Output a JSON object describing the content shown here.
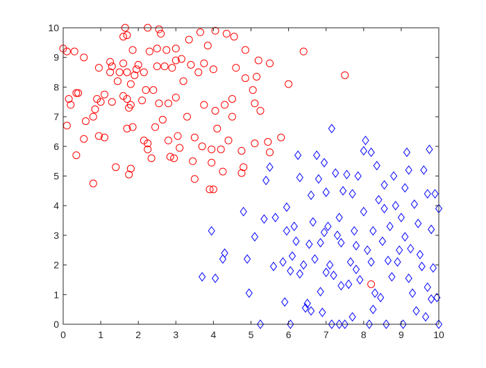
{
  "chart_data": {
    "type": "scatter",
    "title": "",
    "xlabel": "",
    "ylabel": "",
    "xlim": [
      0,
      10
    ],
    "ylim": [
      0,
      10
    ],
    "grid": false,
    "legend": "none",
    "x_ticks": [
      "0",
      "1",
      "2",
      "3",
      "4",
      "5",
      "6",
      "7",
      "8",
      "9",
      "10"
    ],
    "y_ticks": [
      "0",
      "1",
      "2",
      "3",
      "4",
      "5",
      "6",
      "7",
      "8",
      "9",
      "10"
    ],
    "series": [
      {
        "marker": "circle",
        "color": "#ff0000",
        "points": [
          [
            0,
            9.3
          ],
          [
            0.1,
            9.2
          ],
          [
            0.3,
            9.2
          ],
          [
            0.55,
            9.0
          ],
          [
            0.1,
            6.7
          ],
          [
            0.15,
            7.6
          ],
          [
            0.2,
            7.4
          ],
          [
            0.35,
            7.8
          ],
          [
            0.4,
            7.8
          ],
          [
            0.35,
            5.7
          ],
          [
            0.55,
            6.25
          ],
          [
            0.6,
            6.85
          ],
          [
            0.8,
            4.75
          ],
          [
            0.8,
            7.0
          ],
          [
            0.85,
            7.25
          ],
          [
            0.95,
            8.65
          ],
          [
            0.95,
            6.35
          ],
          [
            0.9,
            7.6
          ],
          [
            1.0,
            7.5
          ],
          [
            1.1,
            6.3
          ],
          [
            1.1,
            7.75
          ],
          [
            1.25,
            8.85
          ],
          [
            1.3,
            8.7
          ],
          [
            1.25,
            8.5
          ],
          [
            1.3,
            7.5
          ],
          [
            1.45,
            8.2
          ],
          [
            1.4,
            5.3
          ],
          [
            1.5,
            8.5
          ],
          [
            1.6,
            9.7
          ],
          [
            1.6,
            8.8
          ],
          [
            1.65,
            10
          ],
          [
            1.7,
            9.75
          ],
          [
            1.7,
            8.5
          ],
          [
            1.6,
            7.7
          ],
          [
            1.7,
            7.6
          ],
          [
            1.75,
            7.3
          ],
          [
            1.7,
            6.6
          ],
          [
            1.8,
            8.1
          ],
          [
            1.8,
            7.4
          ],
          [
            1.75,
            5.05
          ],
          [
            1.8,
            5.25
          ],
          [
            1.85,
            9.25
          ],
          [
            1.9,
            8.4
          ],
          [
            1.95,
            8.6
          ],
          [
            1.85,
            6.65
          ],
          [
            2.0,
            8.75
          ],
          [
            2.1,
            7.55
          ],
          [
            2.15,
            8.5
          ],
          [
            2.2,
            7.9
          ],
          [
            2.15,
            6.2
          ],
          [
            2.25,
            5.9
          ],
          [
            2.25,
            6.1
          ],
          [
            2.25,
            10
          ],
          [
            2.3,
            9.2
          ],
          [
            2.4,
            7.9
          ],
          [
            2.35,
            5.6
          ],
          [
            2.5,
            9.3
          ],
          [
            2.5,
            8.7
          ],
          [
            2.45,
            6.65
          ],
          [
            2.55,
            9.95
          ],
          [
            2.6,
            9.8
          ],
          [
            2.55,
            7.45
          ],
          [
            2.65,
            6.9
          ],
          [
            2.7,
            8.7
          ],
          [
            2.75,
            9.25
          ],
          [
            2.8,
            7.45
          ],
          [
            2.8,
            6.2
          ],
          [
            2.85,
            5.65
          ],
          [
            2.9,
            8.65
          ],
          [
            2.95,
            5.6
          ],
          [
            3.0,
            9.3
          ],
          [
            3.0,
            8.9
          ],
          [
            3.0,
            7.65
          ],
          [
            3.05,
            6.35
          ],
          [
            3.1,
            5.95
          ],
          [
            3.15,
            8.95
          ],
          [
            3.2,
            8.2
          ],
          [
            3.3,
            7.0
          ],
          [
            3.35,
            9.6
          ],
          [
            3.4,
            8.75
          ],
          [
            3.45,
            5.5
          ],
          [
            3.5,
            6.3
          ],
          [
            3.5,
            4.9
          ],
          [
            3.6,
            8.5
          ],
          [
            3.65,
            9.85
          ],
          [
            3.7,
            6.0
          ],
          [
            3.75,
            7.4
          ],
          [
            3.75,
            8.8
          ],
          [
            3.85,
            9.4
          ],
          [
            3.95,
            5.9
          ],
          [
            3.95,
            5.45
          ],
          [
            3.9,
            4.55
          ],
          [
            4.0,
            4.55
          ],
          [
            4.05,
            9.9
          ],
          [
            4.0,
            8.6
          ],
          [
            4.05,
            7.2
          ],
          [
            4.1,
            6.6
          ],
          [
            4.2,
            5.9
          ],
          [
            4.25,
            5.15
          ],
          [
            4.3,
            7.4
          ],
          [
            4.35,
            9.8
          ],
          [
            4.4,
            6.2
          ],
          [
            4.5,
            7.6
          ],
          [
            4.5,
            7.0
          ],
          [
            4.55,
            9.7
          ],
          [
            4.6,
            8.65
          ],
          [
            4.75,
            5.85
          ],
          [
            4.8,
            5.3
          ],
          [
            4.75,
            5.1
          ],
          [
            4.85,
            9.25
          ],
          [
            4.85,
            8.3
          ],
          [
            5.05,
            7.9
          ],
          [
            5.1,
            7.45
          ],
          [
            5.1,
            6.1
          ],
          [
            5.15,
            8.35
          ],
          [
            5.2,
            8.9
          ],
          [
            5.25,
            7.2
          ],
          [
            5.45,
            6.15
          ],
          [
            5.5,
            5.8
          ],
          [
            5.5,
            8.8
          ],
          [
            5.8,
            6.3
          ],
          [
            6.0,
            8.1
          ],
          [
            6.4,
            9.2
          ],
          [
            7.5,
            8.4
          ],
          [
            8.2,
            1.35
          ]
        ]
      },
      {
        "marker": "diamond",
        "color": "#0000ff",
        "points": [
          [
            3.7,
            1.6
          ],
          [
            3.95,
            3.15
          ],
          [
            4.05,
            1.55
          ],
          [
            4.25,
            2.2
          ],
          [
            4.3,
            2.4
          ],
          [
            4.8,
            3.8
          ],
          [
            4.9,
            2.2
          ],
          [
            4.95,
            1.05
          ],
          [
            5.1,
            2.95
          ],
          [
            5.25,
            0
          ],
          [
            5.35,
            3.55
          ],
          [
            5.4,
            4.85
          ],
          [
            5.5,
            5.3
          ],
          [
            5.6,
            1.95
          ],
          [
            5.65,
            3.6
          ],
          [
            5.85,
            2.1
          ],
          [
            5.9,
            0.75
          ],
          [
            5.95,
            3.95
          ],
          [
            5.95,
            3.15
          ],
          [
            6.05,
            1.8
          ],
          [
            6.05,
            0
          ],
          [
            6.1,
            2.3
          ],
          [
            6.15,
            3.3
          ],
          [
            6.2,
            2.8
          ],
          [
            6.25,
            5.7
          ],
          [
            6.3,
            1.7
          ],
          [
            6.3,
            4.95
          ],
          [
            6.4,
            2.0
          ],
          [
            6.45,
            0.55
          ],
          [
            6.5,
            0.7
          ],
          [
            6.55,
            2.7
          ],
          [
            6.6,
            4.35
          ],
          [
            6.6,
            0.45
          ],
          [
            6.65,
            3.45
          ],
          [
            6.7,
            2.2
          ],
          [
            6.75,
            5.7
          ],
          [
            6.8,
            4.9
          ],
          [
            6.85,
            2.75
          ],
          [
            6.85,
            1.1
          ],
          [
            6.9,
            0.4
          ],
          [
            6.95,
            3.1
          ],
          [
            6.95,
            5.45
          ],
          [
            7.0,
            4.45
          ],
          [
            7.0,
            1.75
          ],
          [
            7.05,
            3.3
          ],
          [
            7.1,
            2.0
          ],
          [
            7.15,
            6.6
          ],
          [
            7.15,
            0
          ],
          [
            7.2,
            1.65
          ],
          [
            7.25,
            5.1
          ],
          [
            7.3,
            3.0
          ],
          [
            7.35,
            0
          ],
          [
            7.35,
            3.6
          ],
          [
            7.4,
            2.75
          ],
          [
            7.45,
            4.5
          ],
          [
            7.5,
            0
          ],
          [
            7.55,
            5.05
          ],
          [
            7.6,
            1.35
          ],
          [
            7.65,
            2.1
          ],
          [
            7.7,
            4.4
          ],
          [
            7.7,
            0.25
          ],
          [
            7.75,
            3.15
          ],
          [
            7.8,
            2.65
          ],
          [
            7.85,
            5.0
          ],
          [
            7.9,
            1.5
          ],
          [
            8.0,
            3.8
          ],
          [
            8.0,
            5.85
          ],
          [
            8.05,
            6.2
          ],
          [
            8.1,
            2.5
          ],
          [
            8.15,
            0
          ],
          [
            8.2,
            5.8
          ],
          [
            8.25,
            3.15
          ],
          [
            8.25,
            0.5
          ],
          [
            8.3,
            1.05
          ],
          [
            8.35,
            5.35
          ],
          [
            8.4,
            4.2
          ],
          [
            8.45,
            0.9
          ],
          [
            8.5,
            2.8
          ],
          [
            8.55,
            4.7
          ],
          [
            8.6,
            0
          ],
          [
            8.7,
            3.3
          ],
          [
            8.75,
            1.6
          ],
          [
            8.8,
            5.0
          ],
          [
            8.85,
            4.0
          ],
          [
            8.9,
            2.1
          ],
          [
            9.0,
            3.6
          ],
          [
            9.05,
            0
          ],
          [
            9.1,
            4.6
          ],
          [
            9.15,
            5.8
          ],
          [
            9.2,
            1.55
          ],
          [
            9.25,
            2.55
          ],
          [
            9.3,
            1.05
          ],
          [
            9.35,
            4.05
          ],
          [
            9.4,
            0.45
          ],
          [
            9.45,
            3.4
          ],
          [
            9.5,
            2.35
          ],
          [
            9.6,
            5.2
          ],
          [
            9.65,
            0.25
          ],
          [
            9.7,
            4.4
          ],
          [
            9.75,
            5.9
          ],
          [
            9.8,
            3.2
          ],
          [
            9.85,
            1.9
          ],
          [
            9.9,
            4.4
          ],
          [
            9.95,
            0.9
          ],
          [
            10.0,
            0
          ],
          [
            10.0,
            3.9
          ],
          [
            9.8,
            0.85
          ],
          [
            9.55,
            1.95
          ],
          [
            9.1,
            2.95
          ],
          [
            8.65,
            2.15
          ],
          [
            8.2,
            2.1
          ],
          [
            7.8,
            1.85
          ],
          [
            7.4,
            1.3
          ],
          [
            8.55,
            3.9
          ],
          [
            9.2,
            5.2
          ],
          [
            9.7,
            1.25
          ],
          [
            8.95,
            2.5
          ]
        ]
      }
    ]
  }
}
